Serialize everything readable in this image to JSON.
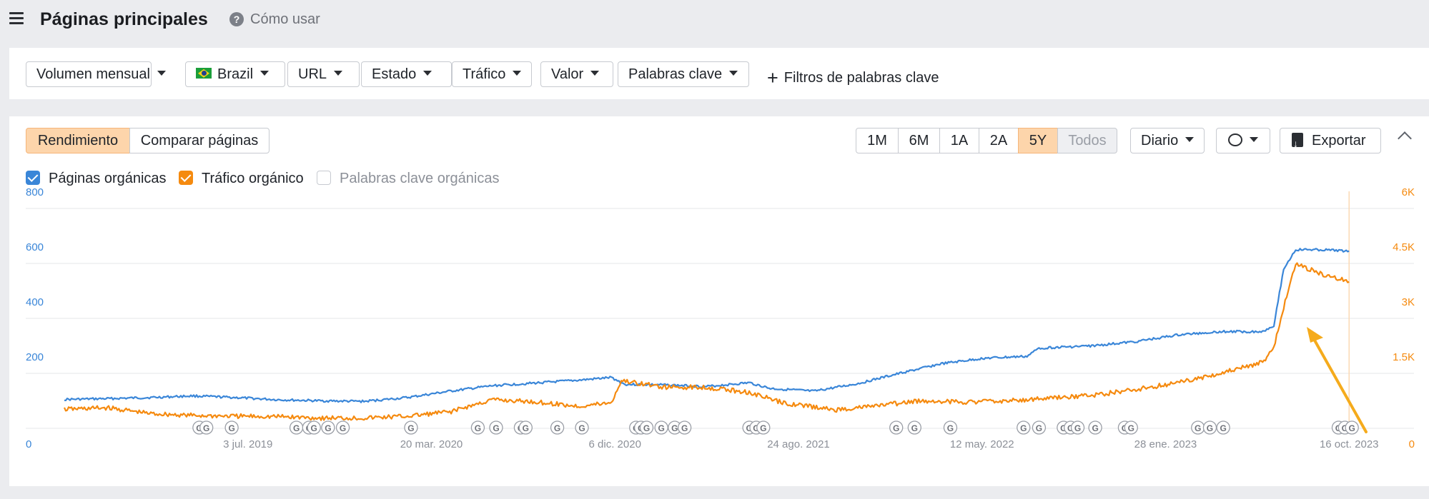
{
  "header": {
    "title": "Páginas principales",
    "help_label": "Cómo usar"
  },
  "filters": {
    "items": [
      {
        "label": "Volumen mensual"
      },
      {
        "label": "Brazil"
      },
      {
        "label": "URL"
      },
      {
        "label": "Estado"
      },
      {
        "label": "Tráfico"
      },
      {
        "label": "Valor"
      },
      {
        "label": "Palabras clave"
      }
    ],
    "add_label": "Filtros de palabras clave"
  },
  "tabs": {
    "performance": "Rendimiento",
    "compare": "Comparar páginas"
  },
  "ranges": [
    "1M",
    "6M",
    "1A",
    "2A",
    "5Y",
    "Todos"
  ],
  "active_range": "5Y",
  "disabled_range": "Todos",
  "interval_label": "Diario",
  "export_label": "Exportar",
  "legend": {
    "pages": "Páginas orgánicas",
    "traffic": "Tráfico orgánico",
    "keywords": "Palabras clave orgánicas"
  },
  "colors": {
    "pages": "#3a86d8",
    "traffic": "#f58a0f",
    "active_range_bg": "#fdd5ab",
    "panel_bg": "#ffffff",
    "page_bg": "#ebecef"
  },
  "chart_data": {
    "type": "line",
    "x_tick_labels": [
      "3 jul. 2019",
      "20 mar. 2020",
      "6 dic. 2020",
      "24 ago. 2021",
      "12 may. 2022",
      "28 ene. 2023",
      "16 oct. 2023"
    ],
    "x_tick_dates": [
      "2019-07-03",
      "2020-03-20",
      "2020-12-06",
      "2021-08-24",
      "2022-05-12",
      "2023-01-28",
      "2023-10-16"
    ],
    "x_range": [
      "2018-10-15",
      "2023-10-30"
    ],
    "y_left": {
      "ticks": [
        "0",
        "200",
        "400",
        "600",
        "800"
      ],
      "range": [
        0,
        800
      ],
      "color": "#3a86d8"
    },
    "y_right": {
      "ticks": [
        "0",
        "1.5K",
        "3K",
        "4.5K",
        "6K"
      ],
      "range": [
        0,
        6000
      ],
      "color": "#f58a0f"
    },
    "grid": true,
    "series": [
      {
        "name": "Páginas orgánicas",
        "axis": "left",
        "color": "#3a86d8",
        "points": [
          [
            "2018-10-15",
            105
          ],
          [
            "2018-12-15",
            108
          ],
          [
            "2019-02-15",
            112
          ],
          [
            "2019-04-15",
            118
          ],
          [
            "2019-06-15",
            112
          ],
          [
            "2019-08-15",
            104
          ],
          [
            "2019-10-15",
            100
          ],
          [
            "2019-12-15",
            98
          ],
          [
            "2020-02-15",
            112
          ],
          [
            "2020-04-15",
            135
          ],
          [
            "2020-06-15",
            155
          ],
          [
            "2020-08-15",
            165
          ],
          [
            "2020-10-15",
            175
          ],
          [
            "2020-12-01",
            185
          ],
          [
            "2020-12-20",
            160
          ],
          [
            "2021-02-15",
            158
          ],
          [
            "2021-04-15",
            152
          ],
          [
            "2021-06-15",
            166
          ],
          [
            "2021-07-15",
            145
          ],
          [
            "2021-09-15",
            135
          ],
          [
            "2021-11-15",
            162
          ],
          [
            "2022-01-15",
            200
          ],
          [
            "2022-03-15",
            235
          ],
          [
            "2022-05-15",
            255
          ],
          [
            "2022-07-15",
            262
          ],
          [
            "2022-08-01",
            292
          ],
          [
            "2022-10-15",
            300
          ],
          [
            "2022-12-15",
            315
          ],
          [
            "2023-02-15",
            340
          ],
          [
            "2023-04-15",
            352
          ],
          [
            "2023-06-15",
            352
          ],
          [
            "2023-07-01",
            375
          ],
          [
            "2023-07-15",
            580
          ],
          [
            "2023-08-01",
            650
          ],
          [
            "2023-09-01",
            650
          ],
          [
            "2023-10-16",
            645
          ]
        ]
      },
      {
        "name": "Tráfico orgánico",
        "axis": "right",
        "color": "#f58a0f",
        "points": [
          [
            "2018-10-15",
            520
          ],
          [
            "2018-12-15",
            560
          ],
          [
            "2019-02-15",
            400
          ],
          [
            "2019-04-15",
            350
          ],
          [
            "2019-06-15",
            330
          ],
          [
            "2019-08-15",
            320
          ],
          [
            "2019-10-15",
            280
          ],
          [
            "2019-12-15",
            280
          ],
          [
            "2020-02-15",
            330
          ],
          [
            "2020-04-15",
            450
          ],
          [
            "2020-06-15",
            780
          ],
          [
            "2020-08-15",
            720
          ],
          [
            "2020-10-15",
            600
          ],
          [
            "2020-12-01",
            700
          ],
          [
            "2020-12-15",
            1300
          ],
          [
            "2021-02-15",
            1120
          ],
          [
            "2021-04-15",
            1120
          ],
          [
            "2021-06-15",
            980
          ],
          [
            "2021-08-01",
            700
          ],
          [
            "2021-10-15",
            500
          ],
          [
            "2021-12-15",
            620
          ],
          [
            "2022-02-15",
            750
          ],
          [
            "2022-04-15",
            720
          ],
          [
            "2022-06-15",
            750
          ],
          [
            "2022-08-15",
            820
          ],
          [
            "2022-10-15",
            900
          ],
          [
            "2022-12-15",
            1050
          ],
          [
            "2023-02-15",
            1250
          ],
          [
            "2023-04-15",
            1500
          ],
          [
            "2023-06-15",
            1800
          ],
          [
            "2023-07-01",
            2200
          ],
          [
            "2023-07-15",
            3300
          ],
          [
            "2023-08-01",
            4500
          ],
          [
            "2023-09-01",
            4250
          ],
          [
            "2023-10-16",
            4000
          ]
        ]
      }
    ],
    "g_marker_label": "G",
    "g_marker_dates": [
      "2019-04-25",
      "2019-05-05",
      "2019-06-10",
      "2019-09-10",
      "2019-09-28",
      "2019-10-05",
      "2019-10-25",
      "2019-11-15",
      "2020-02-20",
      "2020-05-25",
      "2020-06-20",
      "2020-07-25",
      "2020-08-01",
      "2020-09-15",
      "2020-10-20",
      "2021-01-05",
      "2021-01-12",
      "2021-01-20",
      "2021-02-10",
      "2021-03-01",
      "2021-03-15",
      "2021-06-15",
      "2021-06-25",
      "2021-07-05",
      "2022-01-10",
      "2022-02-05",
      "2022-03-28",
      "2022-07-10",
      "2022-08-01",
      "2022-09-05",
      "2022-09-15",
      "2022-09-25",
      "2022-10-20",
      "2022-12-01",
      "2022-12-10",
      "2023-03-15",
      "2023-04-01",
      "2023-04-20",
      "2023-10-01",
      "2023-10-10",
      "2023-10-20"
    ]
  }
}
